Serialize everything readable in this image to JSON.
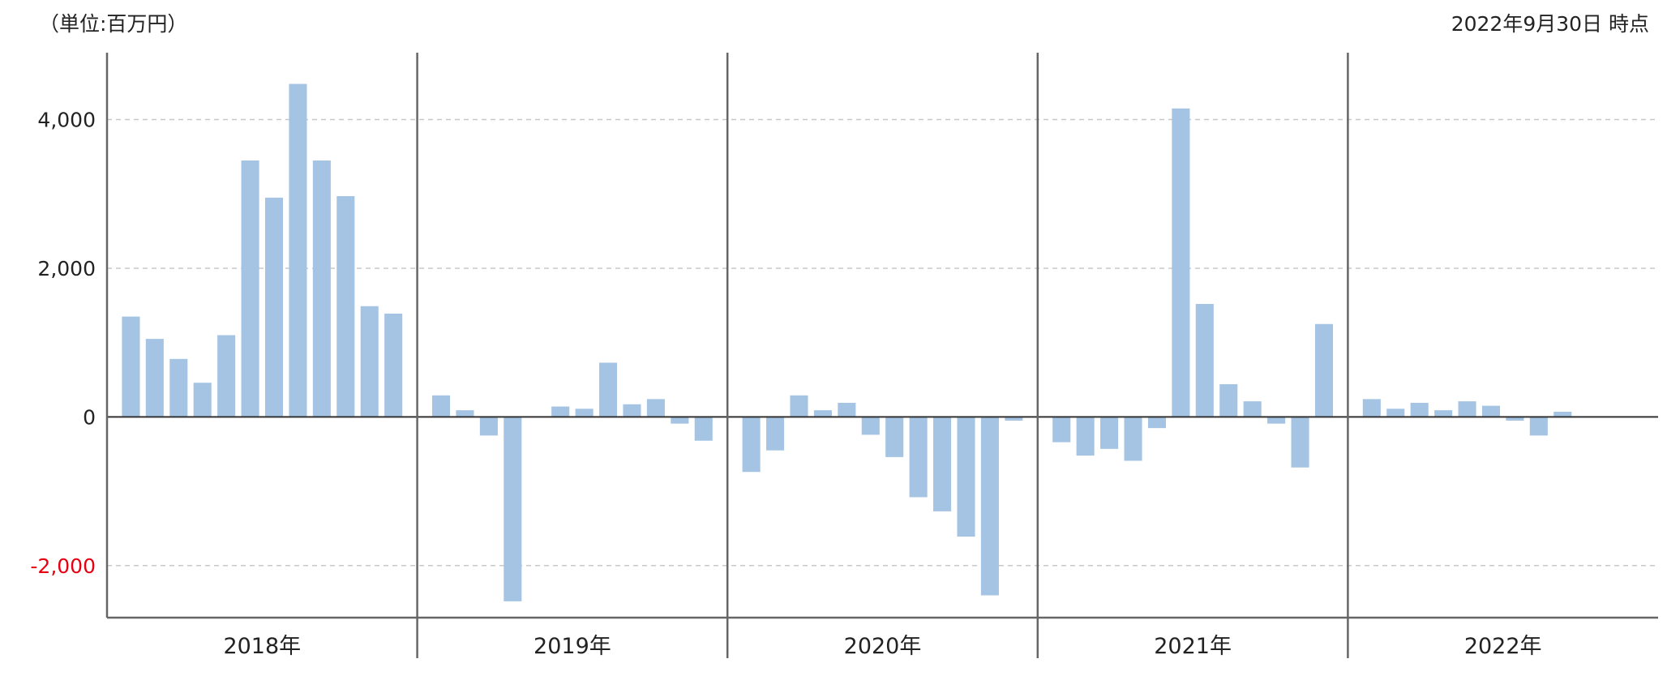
{
  "header": {
    "unit_label": "（単位:百万円）",
    "as_of": "2022年9月30日 時点"
  },
  "colors": {
    "bar": "#a5c4e3",
    "negative_tick": "#e60012",
    "axis": "#666666",
    "grid": "#c8c8c8"
  },
  "chart_data": {
    "type": "bar",
    "title": "",
    "xlabel": "",
    "ylabel": "",
    "ylim": [
      -2700,
      4900
    ],
    "yticks": [
      {
        "value": 4000,
        "label": "4,000"
      },
      {
        "value": 2000,
        "label": "2,000"
      },
      {
        "value": 0,
        "label": "0"
      },
      {
        "value": -2000,
        "label": "-2,000"
      }
    ],
    "grid": true,
    "legend": "none",
    "groups": [
      {
        "label": "2018年",
        "values": [
          1350,
          1050,
          780,
          460,
          1100,
          3450,
          2950,
          4480,
          3450,
          2970,
          1490,
          1390
        ]
      },
      {
        "label": "2019年",
        "values": [
          290,
          90,
          -250,
          -2480,
          0,
          140,
          110,
          730,
          170,
          240,
          -90,
          -320
        ]
      },
      {
        "label": "2020年",
        "values": [
          -740,
          -450,
          290,
          90,
          190,
          -240,
          -540,
          -1080,
          -1270,
          -1610,
          -2400,
          -50
        ]
      },
      {
        "label": "2021年",
        "values": [
          -340,
          -520,
          -430,
          -590,
          -150,
          4150,
          1520,
          440,
          210,
          -90,
          -680,
          1250
        ]
      },
      {
        "label": "2022年",
        "values": [
          240,
          110,
          190,
          90,
          210,
          150,
          -50,
          -250,
          70
        ]
      }
    ]
  }
}
